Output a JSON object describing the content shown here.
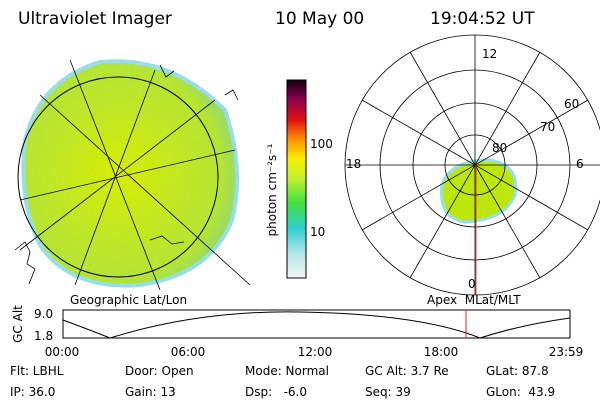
{
  "header": {
    "instrument": "Ultraviolet Imager",
    "date": "10 May 00",
    "time": "19:04:52 UT"
  },
  "colorbar": {
    "label": "photon cm⁻²s⁻¹",
    "ticks": [
      "100",
      "10"
    ]
  },
  "polar": {
    "top": "12",
    "right": "6",
    "bottom": "0",
    "left": "18",
    "rings": [
      "60",
      "70",
      "80"
    ]
  },
  "left_label": "Geographic Lat/Lon",
  "right_label": "Apex  MLat/MLT",
  "alt_plot": {
    "ylabel": "GC Alt",
    "yticks": [
      "9.0",
      "1.8"
    ],
    "xticks": [
      "00:00",
      "06:00",
      "12:00",
      "18:00",
      "23:59"
    ]
  },
  "info": [
    [
      "Flt: LBHL",
      "Door: Open",
      "Mode: Normal",
      "GC Alt: 3.7 Re",
      "GLat: 87.8"
    ],
    [
      "IP: 36.0",
      "Gain: 13",
      "Dsp:   -6.0",
      "Seq: 39",
      "GLon:  43.9"
    ]
  ]
}
